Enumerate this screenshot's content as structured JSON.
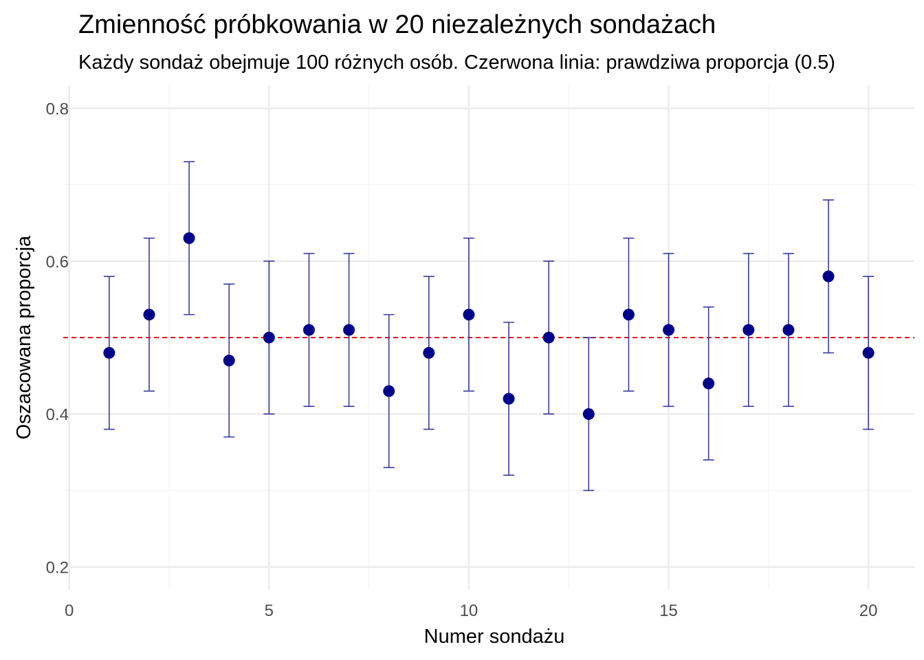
{
  "chart_data": {
    "type": "scatter",
    "title": "Zmienność próbkowania w 20 niezależnych sondażach",
    "subtitle": "Każdy sondaż obejmuje 100 różnych osób. Czerwona linia: prawdziwa proporcja (0.5)",
    "xlabel": "Numer sondażu",
    "ylabel": "Oszacowana proporcja",
    "xlim": [
      -0.15,
      21.15
    ],
    "ylim": [
      0.17,
      0.83
    ],
    "x_ticks": [
      0,
      5,
      10,
      15,
      20
    ],
    "x_tick_labels": [
      "0",
      "5",
      "10",
      "15",
      "20"
    ],
    "y_ticks": [
      0.2,
      0.4,
      0.6,
      0.8
    ],
    "y_tick_labels": [
      "0.2",
      "0.4",
      "0.6",
      "0.8"
    ],
    "x_minor_ticks": [
      2.5,
      7.5,
      12.5,
      17.5
    ],
    "y_minor_ticks": [
      0.3,
      0.5,
      0.7
    ],
    "grid": true,
    "legend": "none",
    "reference_line": {
      "y": 0.5,
      "color": "#e3101a",
      "style": "dashed"
    },
    "point_color": "#00008b",
    "errorbar_color": "#3a3a9e",
    "series": [
      {
        "x": [
          1,
          2,
          3,
          4,
          5,
          6,
          7,
          8,
          9,
          10,
          11,
          12,
          13,
          14,
          15,
          16,
          17,
          18,
          19,
          20
        ],
        "y": [
          0.48,
          0.53,
          0.63,
          0.47,
          0.5,
          0.51,
          0.51,
          0.43,
          0.48,
          0.53,
          0.42,
          0.5,
          0.4,
          0.53,
          0.51,
          0.44,
          0.51,
          0.51,
          0.58,
          0.48
        ],
        "lower": [
          0.38,
          0.43,
          0.53,
          0.37,
          0.4,
          0.41,
          0.41,
          0.33,
          0.38,
          0.43,
          0.32,
          0.4,
          0.3,
          0.43,
          0.41,
          0.34,
          0.41,
          0.41,
          0.48,
          0.38
        ],
        "upper": [
          0.58,
          0.63,
          0.73,
          0.57,
          0.6,
          0.61,
          0.61,
          0.53,
          0.58,
          0.63,
          0.52,
          0.6,
          0.5,
          0.63,
          0.61,
          0.54,
          0.61,
          0.61,
          0.68,
          0.58
        ]
      }
    ]
  }
}
